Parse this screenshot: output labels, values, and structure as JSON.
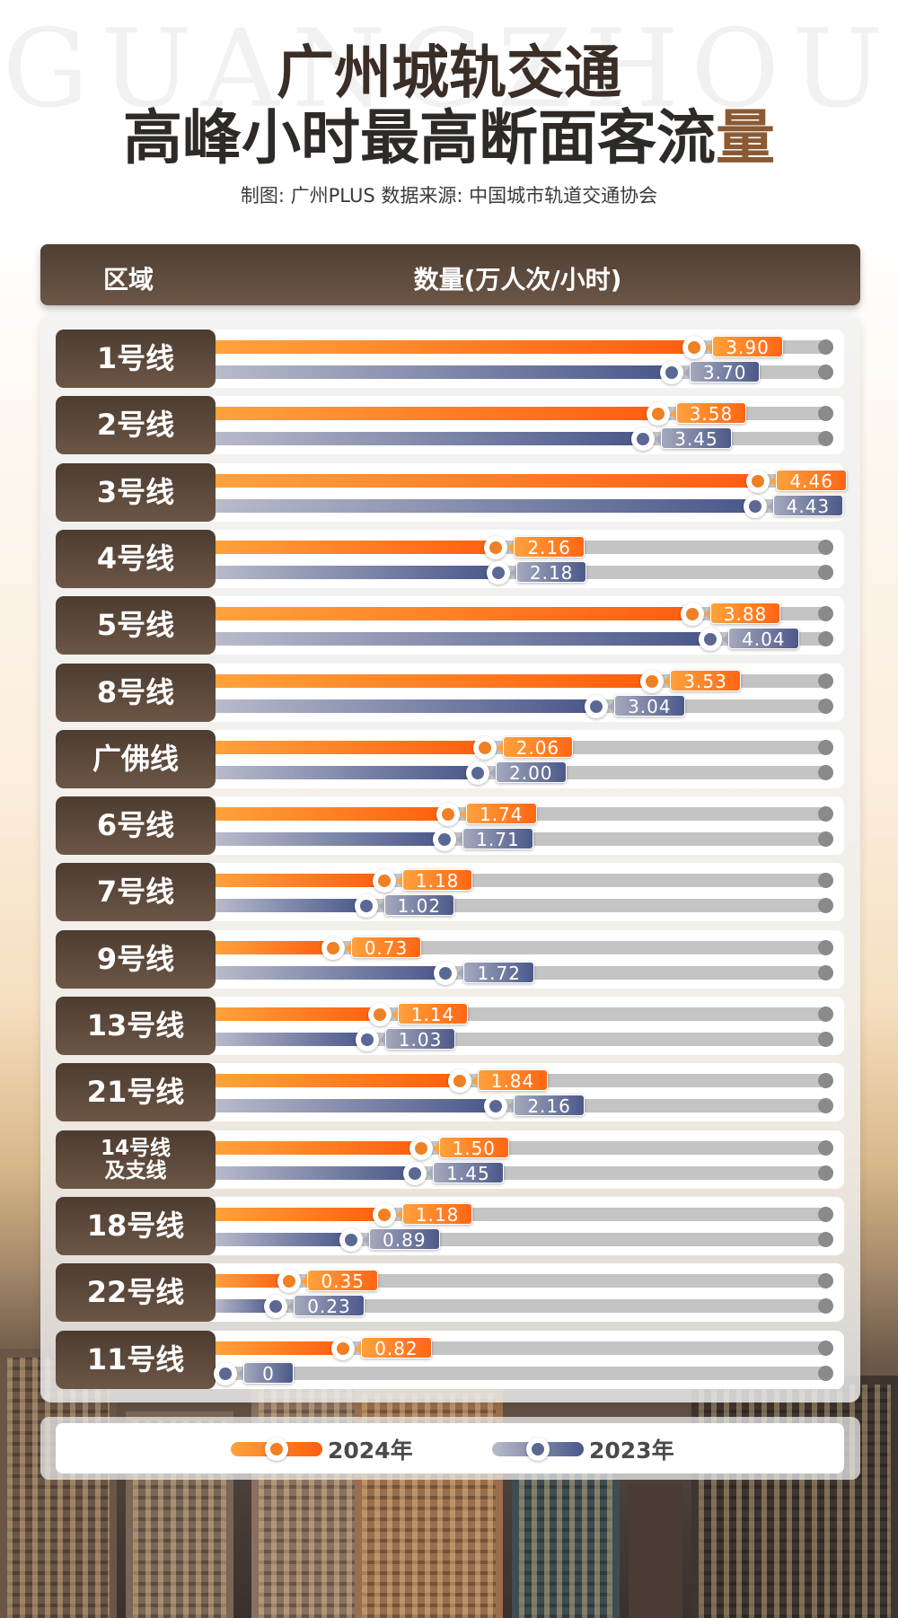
{
  "watermark": "GUANGZHOU",
  "title": {
    "line1": "广州城轨交通",
    "line2_main": "高峰小时最高断面客流",
    "line2_accent": "量"
  },
  "subtitle": "制图: 广州PLUS   数据来源: 中国城市轨道交通协会",
  "header": {
    "col1": "区域",
    "col2": "数量(万人次/小时)"
  },
  "colors": {
    "y2024_start": "#ffa23c",
    "y2024_end": "#ff5e0e",
    "y2023_start": "#b9bbcb",
    "y2023_end": "#49578a",
    "label_bg": "#5a4838",
    "track": "#c4c4c4"
  },
  "legend": {
    "y2024": "2024年",
    "y2023": "2023年"
  },
  "rows": [
    {
      "label": "1号线",
      "v2024": "3.90",
      "v2023": "3.70"
    },
    {
      "label": "2号线",
      "v2024": "3.58",
      "v2023": "3.45"
    },
    {
      "label": "3号线",
      "v2024": "4.46",
      "v2023": "4.43"
    },
    {
      "label": "4号线",
      "v2024": "2.16",
      "v2023": "2.18"
    },
    {
      "label": "5号线",
      "v2024": "3.88",
      "v2023": "4.04"
    },
    {
      "label": "8号线",
      "v2024": "3.53",
      "v2023": "3.04"
    },
    {
      "label": "广佛线",
      "v2024": "2.06",
      "v2023": "2.00"
    },
    {
      "label": "6号线",
      "v2024": "1.74",
      "v2023": "1.71"
    },
    {
      "label": "7号线",
      "v2024": "1.18",
      "v2023": "1.02"
    },
    {
      "label": "9号线",
      "v2024": "0.73",
      "v2023": "1.72"
    },
    {
      "label": "13号线",
      "v2024": "1.14",
      "v2023": "1.03"
    },
    {
      "label": "21号线",
      "v2024": "1.84",
      "v2023": "2.16"
    },
    {
      "label": "14号线\n及支线",
      "v2024": "1.50",
      "v2023": "1.45"
    },
    {
      "label": "18号线",
      "v2024": "1.18",
      "v2023": "0.89"
    },
    {
      "label": "22号线",
      "v2024": "0.35",
      "v2023": "0.23"
    },
    {
      "label": "11号线",
      "v2024": "0.82",
      "v2023": "0"
    }
  ],
  "chart_data": {
    "type": "bar",
    "orientation": "horizontal",
    "title": "广州城轨交通 高峰小时最高断面客流量",
    "subtitle": "制图: 广州PLUS   数据来源: 中国城市轨道交通协会",
    "xlabel": "数量(万人次/小时)",
    "ylabel": "区域",
    "categories": [
      "1号线",
      "2号线",
      "3号线",
      "4号线",
      "5号线",
      "8号线",
      "广佛线",
      "6号线",
      "7号线",
      "9号线",
      "13号线",
      "21号线",
      "14号线及支线",
      "18号线",
      "22号线",
      "11号线"
    ],
    "series": [
      {
        "name": "2024年",
        "values": [
          3.9,
          3.58,
          4.46,
          2.16,
          3.88,
          3.53,
          2.06,
          1.74,
          1.18,
          0.73,
          1.14,
          1.84,
          1.5,
          1.18,
          0.35,
          0.82
        ]
      },
      {
        "name": "2023年",
        "values": [
          3.7,
          3.45,
          4.43,
          2.18,
          4.04,
          3.04,
          2.0,
          1.71,
          1.02,
          1.72,
          1.03,
          2.16,
          1.45,
          0.89,
          0.23,
          0
        ]
      }
    ],
    "legend_position": "bottom",
    "grid": false,
    "xlim": [
      0,
      4.6
    ]
  }
}
